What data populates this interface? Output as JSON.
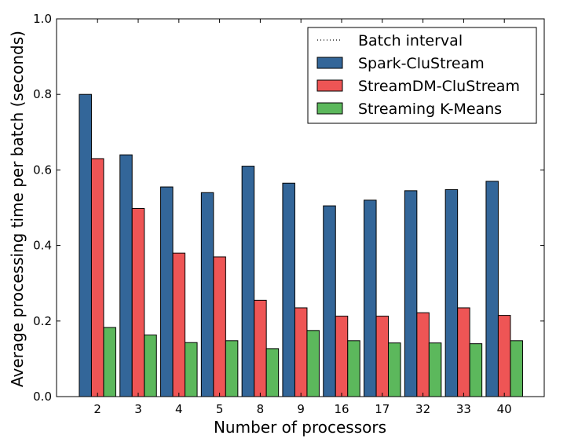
{
  "chart_data": {
    "type": "bar",
    "title": "",
    "xlabel": "Number of processors",
    "ylabel": "Average processing time per batch (seconds)",
    "categories": [
      "2",
      "3",
      "4",
      "5",
      "8",
      "9",
      "16",
      "17",
      "32",
      "33",
      "40"
    ],
    "ylim": [
      0,
      1.0
    ],
    "yticks": [
      "0.0",
      "0.2",
      "0.4",
      "0.6",
      "0.8",
      "1.0"
    ],
    "grid": false,
    "legend_position": "top-right",
    "series": [
      {
        "name": "Spark-CluStream",
        "color": "#336699",
        "values": [
          0.8,
          0.64,
          0.555,
          0.54,
          0.61,
          0.565,
          0.505,
          0.52,
          0.545,
          0.548,
          0.57
        ]
      },
      {
        "name": "StreamDM-CluStream",
        "color": "#EE5555",
        "values": [
          0.63,
          0.498,
          0.38,
          0.37,
          0.255,
          0.235,
          0.213,
          0.213,
          0.222,
          0.235,
          0.215
        ]
      },
      {
        "name": "Streaming K-Means",
        "color": "#5CB85C",
        "values": [
          0.183,
          0.163,
          0.143,
          0.148,
          0.127,
          0.175,
          0.148,
          0.142,
          0.142,
          0.14,
          0.148
        ]
      }
    ],
    "reference_lines": [
      {
        "name": "Batch interval",
        "style": "dotted",
        "color": "#000000"
      }
    ]
  }
}
